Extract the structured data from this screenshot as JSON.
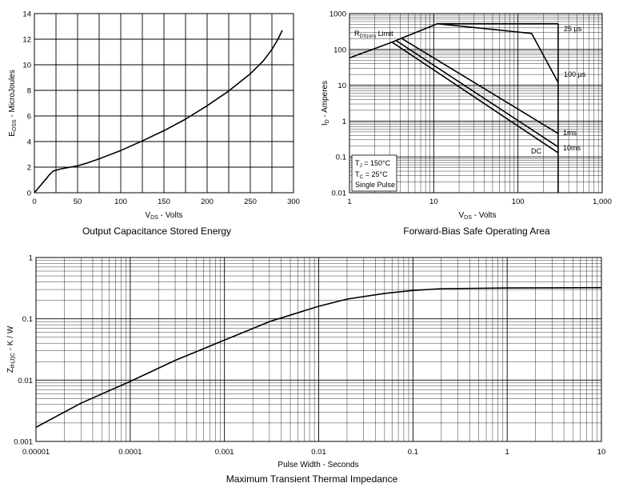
{
  "chart_data": [
    {
      "type": "line",
      "caption": "Output Capacitance Stored Energy",
      "xlabel": "VDS - Volts",
      "xlabel_main": "V",
      "xlabel_sub": "DS",
      "xlabel_rest": " - Volts",
      "ylabel": "EOSS - MicroJoules",
      "ylabel_main": "E",
      "ylabel_sub": "OSS",
      "ylabel_rest": " - MicroJoules",
      "xlim": [
        0,
        300
      ],
      "ylim": [
        0,
        14
      ],
      "xticks": [
        "0",
        "50",
        "100",
        "150",
        "200",
        "250",
        "300"
      ],
      "yticks": [
        "0",
        "2",
        "4",
        "6",
        "8",
        "10",
        "12",
        "14"
      ],
      "x": [
        0,
        5,
        10,
        15,
        18,
        22,
        30,
        40,
        50,
        60,
        75,
        100,
        125,
        150,
        175,
        200,
        225,
        250,
        265,
        275,
        282,
        287
      ],
      "values": [
        0,
        0.4,
        0.8,
        1.2,
        1.45,
        1.7,
        1.85,
        1.98,
        2.1,
        2.3,
        2.65,
        3.3,
        4.05,
        4.85,
        5.75,
        6.8,
        7.95,
        9.3,
        10.3,
        11.2,
        12.0,
        12.7
      ]
    },
    {
      "type": "line",
      "caption": "Forward-Bias Safe Operating Area",
      "xlabel": "VDS - Volts",
      "xlabel_main": "V",
      "xlabel_sub": "DS",
      "xlabel_rest": " - Volts",
      "ylabel": "ID - Amperes",
      "ylabel_main": "I",
      "ylabel_sub": "D",
      "ylabel_rest": " - Amperes",
      "xscale": "log",
      "yscale": "log",
      "xlim": [
        1,
        1000
      ],
      "ylim": [
        0.01,
        1000
      ],
      "xticks": [
        "1",
        "10",
        "100",
        "1,000"
      ],
      "yticks": [
        "0.01",
        "0.1",
        "1",
        "10",
        "100",
        "1000"
      ],
      "rds_label_main": "R",
      "rds_label_sub": "DS(on)",
      "rds_label_rest": " Limit",
      "conditions": {
        "tj_main": "T",
        "tj_sub": "J",
        "tj_rest": " = 150°C",
        "tc_main": "T",
        "tc_sub": "C",
        "tc_rest": " = 25°C",
        "pulse": "Single Pulse"
      },
      "series": [
        {
          "name": "RDS(on) Limit",
          "x": [
            1,
            3.2
          ],
          "values": [
            58,
            160
          ]
        },
        {
          "name": "25 µs",
          "label": "25 µs",
          "x": [
            3.2,
            11,
            145,
            300
          ],
          "values": [
            160,
            520,
            520,
            520
          ]
        },
        {
          "name": "100 µs",
          "label": "100 µs",
          "x": [
            11,
            145,
            300
          ],
          "values": [
            520,
            280,
            12
          ]
        },
        {
          "name": "1ms",
          "label": "1ms",
          "x": [
            4.2,
            300
          ],
          "values": [
            200,
            0.45
          ]
        },
        {
          "name": "10ms",
          "label": "10ms",
          "x": [
            3.6,
            300
          ],
          "values": [
            175,
            0.19
          ]
        },
        {
          "name": "DC",
          "label": "DC",
          "x": [
            3.2,
            300
          ],
          "values": [
            160,
            0.13
          ]
        },
        {
          "name": "VDS limit",
          "x": [
            300,
            300
          ],
          "values": [
            0.01,
            520
          ]
        }
      ]
    },
    {
      "type": "line",
      "caption": "Maximum Transient Thermal Impedance",
      "xlabel": "Pulse Width - Seconds",
      "ylabel": "Zth(JC) - K / W",
      "ylabel_main": "Z",
      "ylabel_sub": "th(J)C",
      "ylabel_rest": " - K / W",
      "xscale": "log",
      "yscale": "log",
      "xlim": [
        1e-05,
        10
      ],
      "ylim": [
        0.001,
        1
      ],
      "xticks": [
        "0.00001",
        "0.0001",
        "0.001",
        "0.01",
        "0.1",
        "1",
        "10"
      ],
      "yticks": [
        "0.001",
        "0.01",
        "0.1",
        "1"
      ],
      "x": [
        1e-05,
        3e-05,
        0.0001,
        0.0003,
        0.001,
        0.003,
        0.01,
        0.02,
        0.05,
        0.1,
        0.2,
        0.5,
        1,
        3,
        10
      ],
      "values": [
        0.0017,
        0.0042,
        0.0095,
        0.021,
        0.045,
        0.09,
        0.16,
        0.21,
        0.26,
        0.29,
        0.31,
        0.315,
        0.318,
        0.32,
        0.322
      ]
    }
  ]
}
